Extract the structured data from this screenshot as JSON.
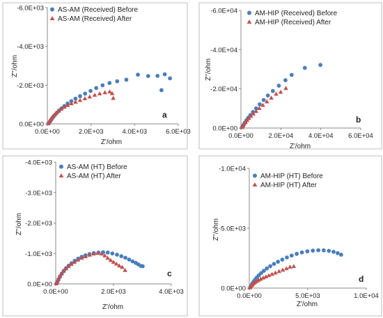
{
  "colors": {
    "before": "#4a7ebb",
    "after": "#c0504d",
    "axis": "#888888",
    "frame": "#bfbfbf"
  },
  "chart_data": [
    {
      "type": "scatter",
      "panel_label": "a",
      "xlabel": "Z'/ohm",
      "ylabel": "Z''/ohm",
      "xlim": [
        0,
        6000
      ],
      "ylim": [
        0,
        -6000
      ],
      "x_ticks": [
        0,
        2000,
        4000,
        6000
      ],
      "x_tick_labels": [
        "0.0E+00",
        "2.0E+03",
        "4.0E+03",
        "6.0E+03"
      ],
      "y_ticks": [
        0,
        -2000,
        -4000,
        -6000
      ],
      "y_tick_labels": [
        "0.0E+00",
        "-2.0E+03",
        "-4.0E+03",
        "-6.0E+03"
      ],
      "legend_position": "top-left",
      "series": [
        {
          "name": "AS-AM (Received) Before",
          "marker": "circle",
          "color_key": "before",
          "points": [
            [
              60,
              -30
            ],
            [
              100,
              -90
            ],
            [
              140,
              -160
            ],
            [
              180,
              -230
            ],
            [
              230,
              -310
            ],
            [
              290,
              -400
            ],
            [
              360,
              -480
            ],
            [
              440,
              -580
            ],
            [
              540,
              -690
            ],
            [
              650,
              -800
            ],
            [
              780,
              -920
            ],
            [
              930,
              -1050
            ],
            [
              1100,
              -1170
            ],
            [
              1290,
              -1300
            ],
            [
              1500,
              -1430
            ],
            [
              1730,
              -1560
            ],
            [
              1980,
              -1700
            ],
            [
              2240,
              -1850
            ],
            [
              2530,
              -1990
            ],
            [
              2850,
              -2110
            ],
            [
              3200,
              -2200
            ],
            [
              3620,
              -2280
            ],
            [
              4150,
              -2540
            ],
            [
              4620,
              -2470
            ],
            [
              5050,
              -2480
            ],
            [
              5380,
              -2560
            ],
            [
              5620,
              -2350
            ],
            [
              5230,
              -1740
            ]
          ]
        },
        {
          "name": "AS-AM (Received) After",
          "marker": "triangle",
          "color_key": "after",
          "points": [
            [
              40,
              -20
            ],
            [
              70,
              -70
            ],
            [
              110,
              -140
            ],
            [
              150,
              -210
            ],
            [
              200,
              -290
            ],
            [
              260,
              -380
            ],
            [
              330,
              -470
            ],
            [
              420,
              -570
            ],
            [
              520,
              -670
            ],
            [
              640,
              -770
            ],
            [
              780,
              -870
            ],
            [
              930,
              -960
            ],
            [
              1100,
              -1050
            ],
            [
              1290,
              -1130
            ],
            [
              1500,
              -1220
            ],
            [
              1720,
              -1310
            ],
            [
              1940,
              -1400
            ],
            [
              2170,
              -1490
            ],
            [
              2400,
              -1560
            ],
            [
              2640,
              -1620
            ],
            [
              2860,
              -1660
            ],
            [
              2970,
              -1570
            ],
            [
              3020,
              -1330
            ]
          ]
        }
      ]
    },
    {
      "type": "scatter",
      "panel_label": "b",
      "xlabel": "Z'/ohm",
      "ylabel": "Z''/ohm",
      "xlim": [
        0,
        60000
      ],
      "ylim": [
        0,
        -60000
      ],
      "x_ticks": [
        0,
        20000,
        40000,
        60000
      ],
      "x_tick_labels": [
        "0.0E+00",
        "2.0E+04",
        "4.0E+04",
        "6.0E+04"
      ],
      "y_ticks": [
        0,
        -20000,
        -40000,
        -60000
      ],
      "y_tick_labels": [
        "0.0E+00",
        "-2.0E+04",
        "-4.0E+04",
        "-6.0E+04"
      ],
      "legend_position": "top-left",
      "series": [
        {
          "name": "AM-HIP (Received) Before",
          "marker": "circle",
          "color_key": "before",
          "points": [
            [
              600,
              -500
            ],
            [
              1200,
              -1500
            ],
            [
              1900,
              -2700
            ],
            [
              2700,
              -3900
            ],
            [
              3600,
              -5200
            ],
            [
              4700,
              -6600
            ],
            [
              6000,
              -8200
            ],
            [
              7600,
              -10000
            ],
            [
              9400,
              -12100
            ],
            [
              11400,
              -14300
            ],
            [
              13500,
              -16600
            ],
            [
              16000,
              -18900
            ],
            [
              19000,
              -21600
            ],
            [
              22300,
              -24400
            ],
            [
              25400,
              -27100
            ],
            [
              32000,
              -30700
            ],
            [
              39800,
              -32200
            ]
          ]
        },
        {
          "name": "AM-HIP (Received) After",
          "marker": "triangle",
          "color_key": "after",
          "points": [
            [
              500,
              -400
            ],
            [
              1000,
              -1200
            ],
            [
              1600,
              -2100
            ],
            [
              2300,
              -3000
            ],
            [
              3100,
              -4000
            ],
            [
              4000,
              -5000
            ],
            [
              5000,
              -6100
            ],
            [
              6200,
              -7300
            ],
            [
              7600,
              -8600
            ],
            [
              9200,
              -10100
            ],
            [
              11000,
              -11700
            ],
            [
              13000,
              -13500
            ],
            [
              15200,
              -15400
            ],
            [
              17600,
              -17400
            ],
            [
              19900,
              -18400
            ],
            [
              22500,
              -20300
            ]
          ]
        }
      ]
    },
    {
      "type": "scatter",
      "panel_label": "c",
      "xlabel": "Z'/ohm",
      "ylabel": "Z''/ohm",
      "xlim": [
        0,
        4000
      ],
      "ylim": [
        0,
        -4000
      ],
      "x_ticks": [
        0,
        2000,
        4000
      ],
      "x_tick_labels": [
        "0.0E+00",
        "2.0E+03",
        "4.0E+03"
      ],
      "y_ticks": [
        0,
        -1000,
        -2000,
        -3000,
        -4000
      ],
      "y_tick_labels": [
        "0.0E+00",
        "-1.0E+03",
        "-2.0E+03",
        "-3.0E+03",
        "-4.0E+03"
      ],
      "legend_position": "top-left",
      "series": [
        {
          "name": "AS-AM (HT) Before",
          "marker": "circle",
          "color_key": "before",
          "points": [
            [
              30,
              -20
            ],
            [
              60,
              -80
            ],
            [
              100,
              -160
            ],
            [
              150,
              -250
            ],
            [
              210,
              -340
            ],
            [
              280,
              -430
            ],
            [
              360,
              -520
            ],
            [
              450,
              -600
            ],
            [
              550,
              -680
            ],
            [
              660,
              -760
            ],
            [
              780,
              -830
            ],
            [
              900,
              -890
            ],
            [
              1030,
              -940
            ],
            [
              1170,
              -980
            ],
            [
              1320,
              -1010
            ],
            [
              1480,
              -1030
            ],
            [
              1640,
              -1040
            ],
            [
              1800,
              -1030
            ],
            [
              1960,
              -1000
            ],
            [
              2120,
              -960
            ],
            [
              2270,
              -910
            ],
            [
              2410,
              -860
            ],
            [
              2540,
              -800
            ],
            [
              2660,
              -740
            ],
            [
              2770,
              -690
            ],
            [
              2860,
              -640
            ],
            [
              2950,
              -590
            ],
            [
              3010,
              -580
            ]
          ]
        },
        {
          "name": "AS-AM (HT) After",
          "marker": "triangle",
          "color_key": "after",
          "points": [
            [
              20,
              -10
            ],
            [
              50,
              -70
            ],
            [
              90,
              -150
            ],
            [
              140,
              -240
            ],
            [
              200,
              -330
            ],
            [
              270,
              -420
            ],
            [
              350,
              -500
            ],
            [
              440,
              -580
            ],
            [
              540,
              -650
            ],
            [
              650,
              -720
            ],
            [
              770,
              -790
            ],
            [
              900,
              -850
            ],
            [
              1030,
              -900
            ],
            [
              1170,
              -950
            ],
            [
              1310,
              -990
            ],
            [
              1450,
              -1010
            ],
            [
              1590,
              -990
            ],
            [
              1700,
              -930
            ],
            [
              1800,
              -850
            ],
            [
              1900,
              -780
            ],
            [
              2000,
              -720
            ],
            [
              2100,
              -660
            ],
            [
              2200,
              -600
            ],
            [
              2300,
              -550
            ],
            [
              2400,
              -450
            ]
          ]
        }
      ]
    },
    {
      "type": "scatter",
      "panel_label": "d",
      "xlabel": "Z'/ohm",
      "ylabel": "Z''/ohm",
      "xlim": [
        0,
        10000
      ],
      "ylim": [
        0,
        -10000
      ],
      "x_ticks": [
        0,
        5000,
        10000
      ],
      "x_tick_labels": [
        "0.0E+00",
        "5.0E+03",
        "1.0E+04"
      ],
      "y_ticks": [
        0,
        -5000,
        -10000
      ],
      "y_tick_labels": [
        "0.0E+00",
        "-5.0E+03",
        "-1.0E+04"
      ],
      "legend_position": "top-left",
      "series": [
        {
          "name": "AM-HIP (HT) Before",
          "marker": "circle",
          "color_key": "before",
          "points": [
            [
              80,
              -60
            ],
            [
              160,
              -200
            ],
            [
              250,
              -360
            ],
            [
              360,
              -530
            ],
            [
              490,
              -700
            ],
            [
              640,
              -880
            ],
            [
              810,
              -1060
            ],
            [
              1010,
              -1250
            ],
            [
              1240,
              -1440
            ],
            [
              1500,
              -1640
            ],
            [
              1790,
              -1830
            ],
            [
              2110,
              -2020
            ],
            [
              2450,
              -2200
            ],
            [
              2820,
              -2380
            ],
            [
              3210,
              -2560
            ],
            [
              3620,
              -2720
            ],
            [
              4050,
              -2860
            ],
            [
              4500,
              -2980
            ],
            [
              4960,
              -3070
            ],
            [
              5430,
              -3130
            ],
            [
              5900,
              -3160
            ],
            [
              6360,
              -3150
            ],
            [
              6800,
              -3110
            ],
            [
              7200,
              -3030
            ],
            [
              7550,
              -2920
            ],
            [
              7850,
              -2790
            ]
          ]
        },
        {
          "name": "AM-HIP (HT) After",
          "marker": "triangle",
          "color_key": "after",
          "points": [
            [
              50,
              -40
            ],
            [
              110,
              -120
            ],
            [
              180,
              -210
            ],
            [
              260,
              -300
            ],
            [
              360,
              -390
            ],
            [
              480,
              -480
            ],
            [
              620,
              -570
            ],
            [
              790,
              -660
            ],
            [
              980,
              -760
            ],
            [
              1190,
              -860
            ],
            [
              1420,
              -960
            ],
            [
              1670,
              -1060
            ],
            [
              1940,
              -1170
            ],
            [
              2230,
              -1280
            ],
            [
              2540,
              -1400
            ],
            [
              2860,
              -1520
            ],
            [
              3180,
              -1640
            ],
            [
              3480,
              -1770
            ],
            [
              3800,
              -1820
            ]
          ]
        }
      ]
    }
  ]
}
